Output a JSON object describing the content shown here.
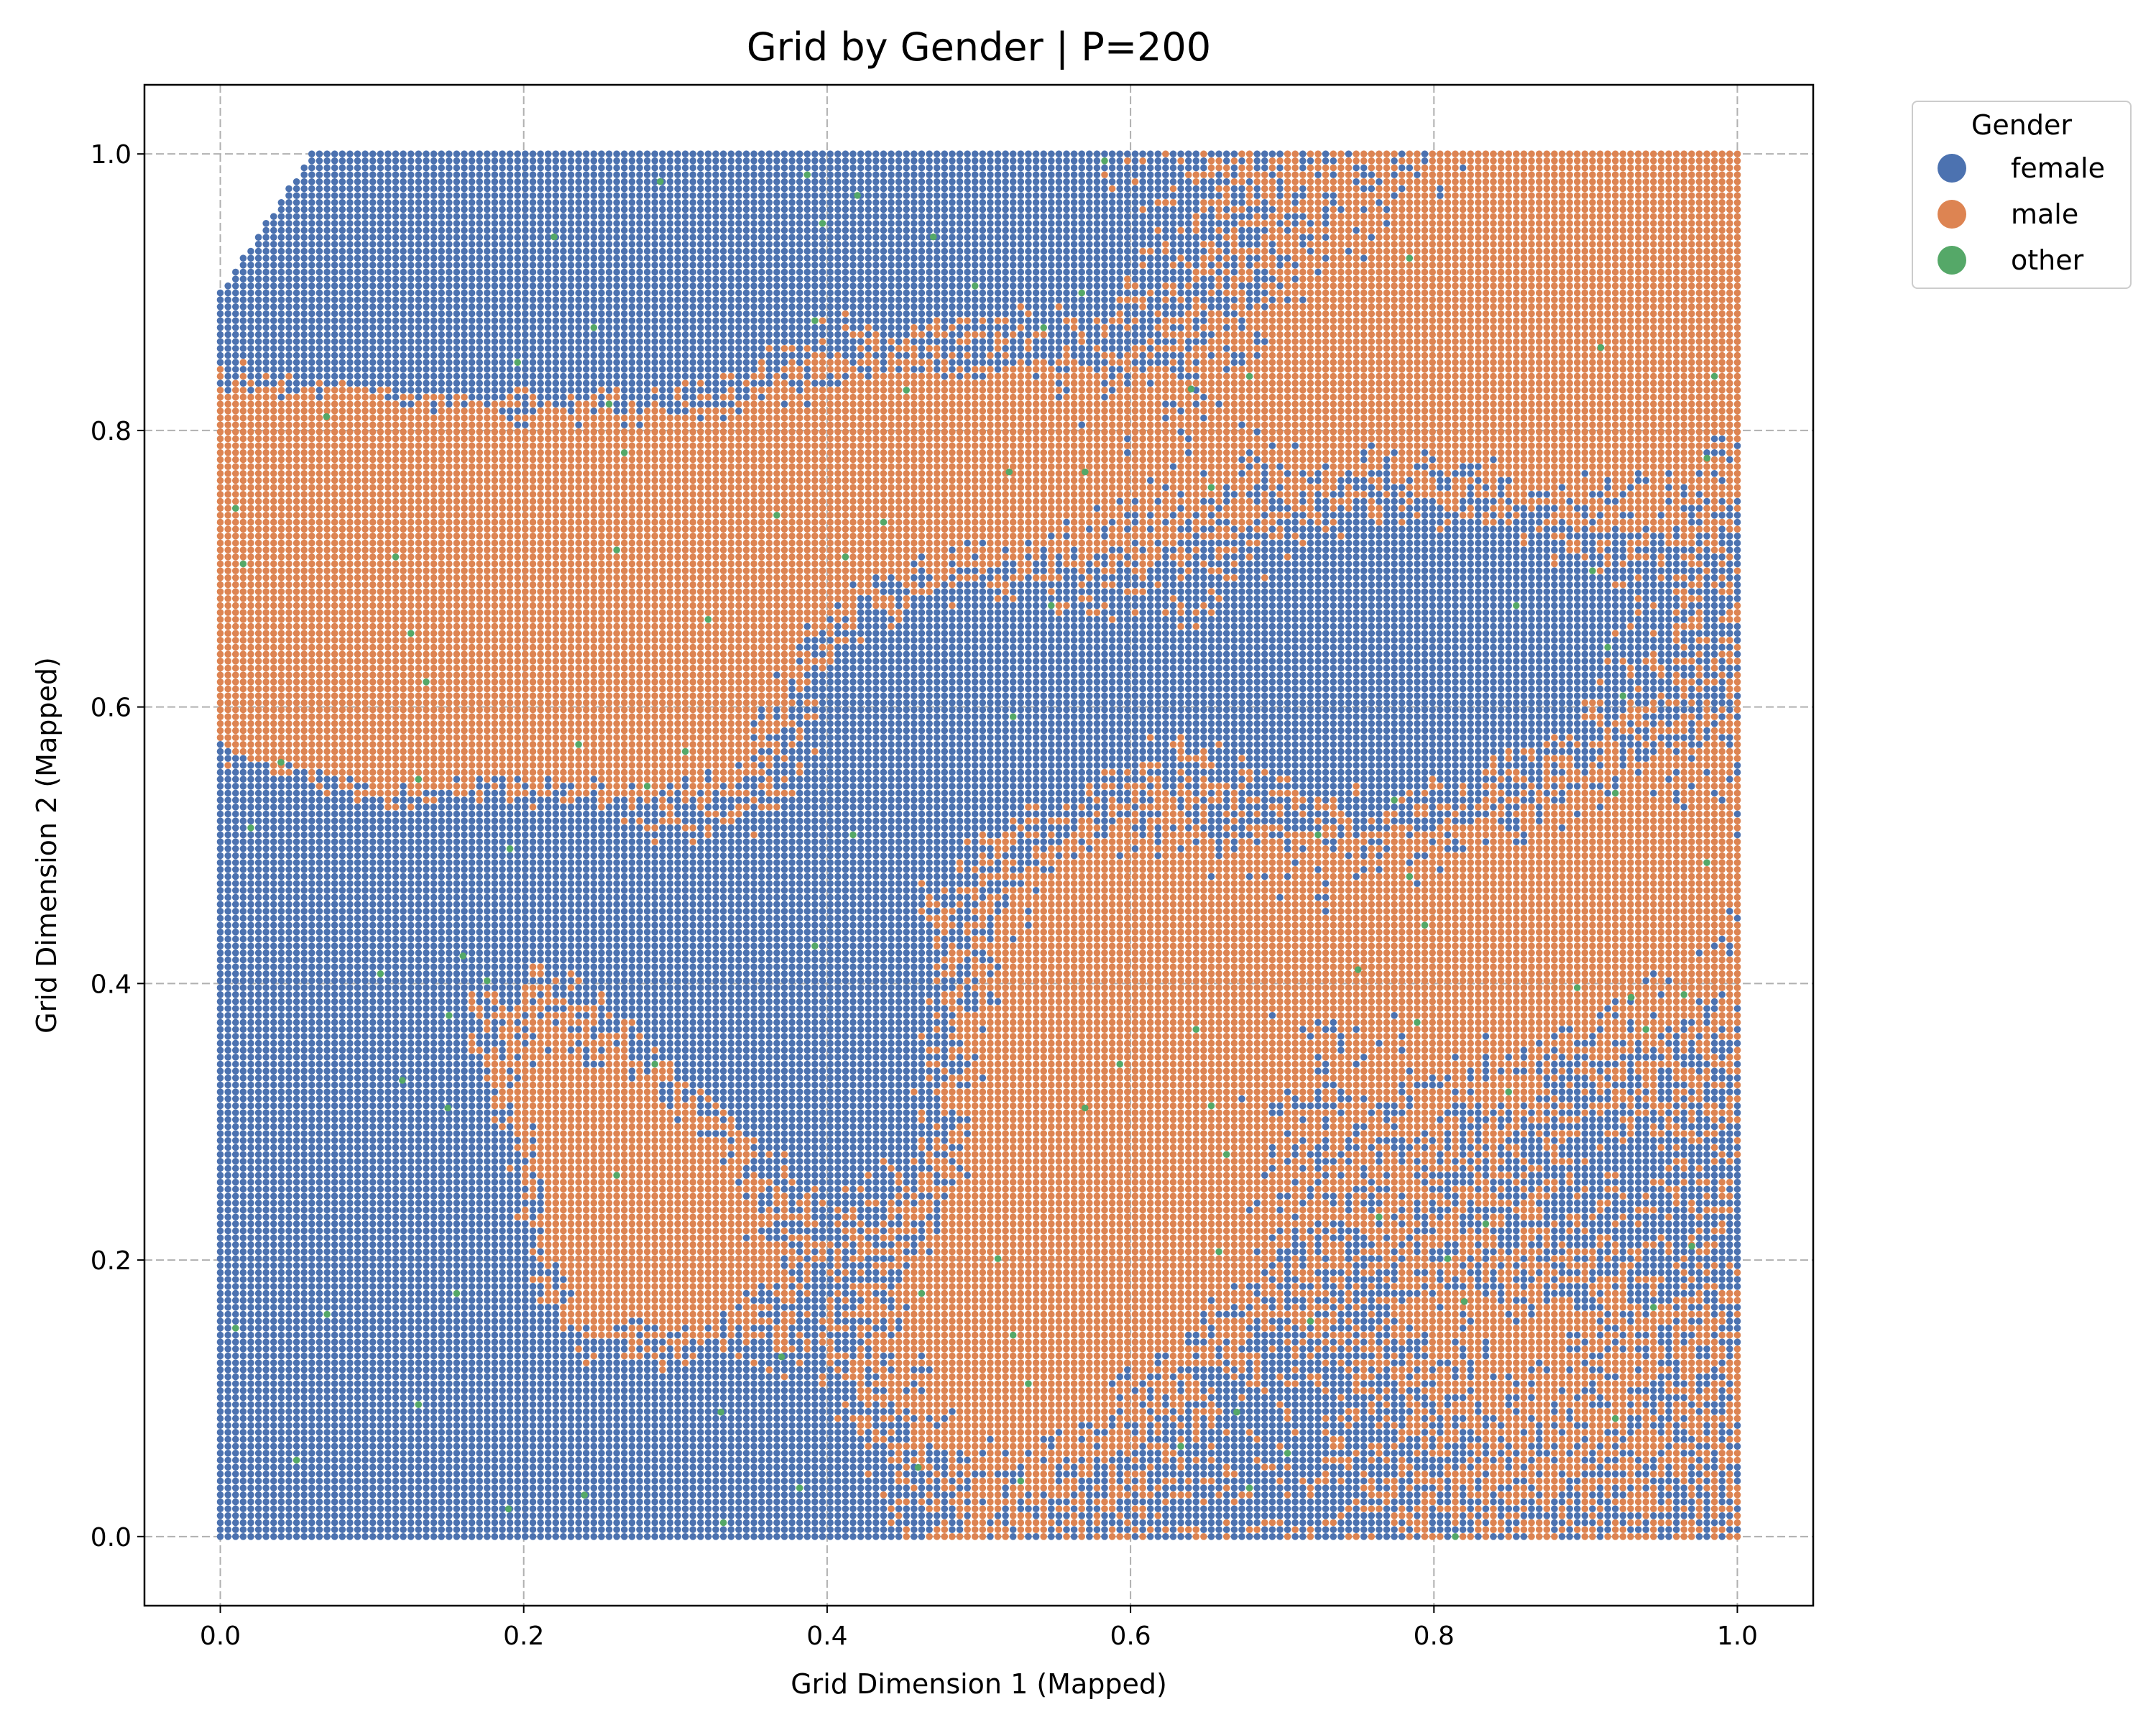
{
  "chart_data": {
    "type": "scatter",
    "title": "Grid by Gender | P=200",
    "xlabel": "Grid Dimension 1 (Mapped)",
    "ylabel": "Grid Dimension 2 (Mapped)",
    "xlim": [
      -0.05,
      1.05
    ],
    "ylim": [
      -0.05,
      1.05
    ],
    "xticks": [
      "0.0",
      "0.2",
      "0.4",
      "0.6",
      "0.8",
      "1.0"
    ],
    "yticks": [
      "0.0",
      "0.2",
      "0.4",
      "0.6",
      "0.8",
      "1.0"
    ],
    "grid": true,
    "grid_points_per_side": 200,
    "legend": {
      "title": "Gender",
      "placement": "outside-right-top",
      "entries": [
        {
          "name": "female",
          "color": "#4c72b0"
        },
        {
          "name": "male",
          "color": "#dd8452"
        },
        {
          "name": "other",
          "color": "#55a868"
        }
      ]
    },
    "series": [
      {
        "name": "female",
        "color": "#4c72b0",
        "points": [
          [
            0.0,
            0.0
          ],
          [
            0.05,
            0.5
          ],
          [
            0.1,
            0.25
          ],
          [
            0.12,
            0.97
          ],
          [
            0.3,
            0.9
          ],
          [
            0.5,
            0.95
          ],
          [
            0.2,
            0.5
          ],
          [
            0.4,
            0.35
          ],
          [
            0.45,
            0.6
          ],
          [
            0.8,
            0.6
          ],
          [
            0.9,
            0.25
          ],
          [
            0.7,
            0.1
          ]
        ]
      },
      {
        "name": "male",
        "color": "#dd8452",
        "points": [
          [
            0.1,
            0.7
          ],
          [
            0.3,
            0.6
          ],
          [
            0.25,
            0.2
          ],
          [
            0.55,
            0.8
          ],
          [
            0.8,
            0.85
          ],
          [
            0.95,
            0.9
          ],
          [
            0.6,
            0.45
          ],
          [
            0.85,
            0.4
          ],
          [
            0.5,
            0.15
          ],
          [
            0.95,
            0.5
          ]
        ]
      },
      {
        "name": "other",
        "color": "#55a868",
        "points": [
          [
            0.07,
            0.81
          ],
          [
            0.22,
            0.94
          ],
          [
            0.29,
            0.98
          ],
          [
            0.42,
            0.97
          ],
          [
            0.47,
            0.94
          ],
          [
            0.64,
            0.83
          ],
          [
            0.57,
            0.77
          ],
          [
            0.52,
            0.77
          ],
          [
            0.04,
            0.56
          ],
          [
            0.16,
            0.42
          ],
          [
            0.12,
            0.33
          ],
          [
            0.15,
            0.31
          ],
          [
            0.75,
            0.41
          ],
          [
            0.93,
            0.39
          ],
          [
            0.97,
            0.21
          ],
          [
            0.33,
            0.09
          ],
          [
            0.37,
            0.13
          ],
          [
            0.46,
            0.05
          ],
          [
            0.19,
            0.02
          ],
          [
            0.24,
            0.03
          ],
          [
            0.67,
            0.09
          ],
          [
            0.82,
            0.17
          ],
          [
            0.91,
            0.86
          ],
          [
            0.98,
            0.78
          ],
          [
            0.57,
            0.31
          ]
        ]
      }
    ]
  }
}
